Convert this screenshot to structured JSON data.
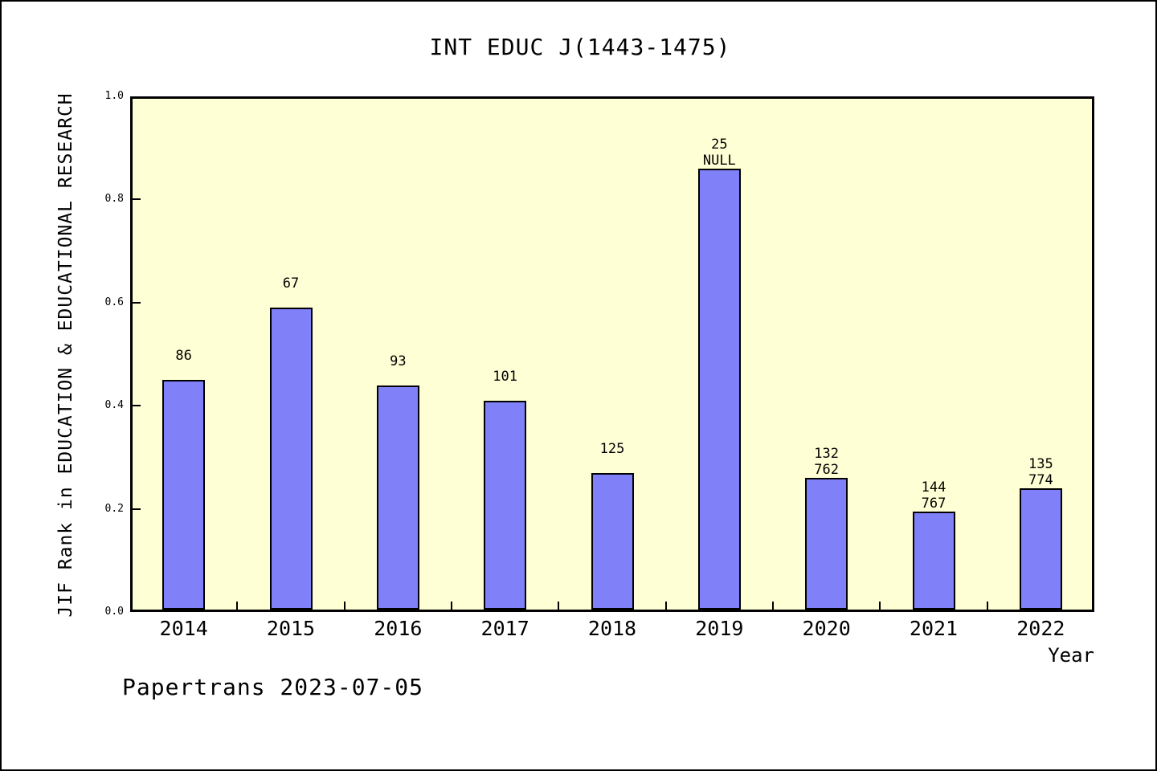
{
  "title": "INT EDUC J(1443-1475)",
  "footer": "Papertrans 2023-07-05",
  "chart_data": {
    "type": "bar",
    "title": "INT EDUC J(1443-1475)",
    "xlabel": "Year",
    "ylabel": "JIF Rank in EDUCATION & EDUCATIONAL RESEARCH",
    "categories": [
      "2014",
      "2015",
      "2016",
      "2017",
      "2018",
      "2019",
      "2020",
      "2021",
      "2022"
    ],
    "values": [
      0.45,
      0.59,
      0.44,
      0.41,
      0.27,
      0.86,
      0.26,
      0.195,
      0.24
    ],
    "bar_labels": [
      [
        "86"
      ],
      [
        "67"
      ],
      [
        "93"
      ],
      [
        "101"
      ],
      [
        "125"
      ],
      [
        "25",
        "NULL"
      ],
      [
        "132",
        "762"
      ],
      [
        "144",
        "767"
      ],
      [
        "135",
        "774"
      ]
    ],
    "ylim": [
      0.0,
      1.0
    ],
    "yticks": [
      "0.0",
      "0.2",
      "0.4",
      "0.6",
      "0.8",
      "1.0"
    ],
    "grid": false,
    "legend": "none",
    "colors": {
      "bar_fill": "#8080f8",
      "bar_edge": "#000000",
      "plot_bg": "#ffffd5",
      "frame": "#000000",
      "page_bg": "#ffffff",
      "text": "#000000"
    }
  }
}
